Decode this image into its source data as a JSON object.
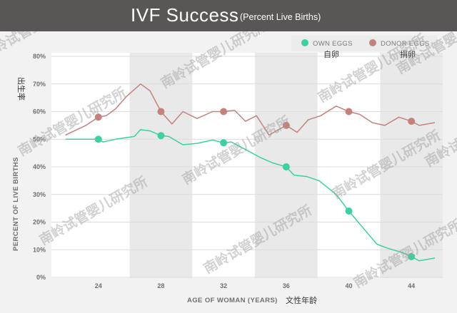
{
  "chart_data": {
    "type": "line",
    "title": "IVF Success",
    "subtitle": "(Percent Live Births)",
    "xlabel": "AGE OF WOMAN (YEARS)",
    "xlabel_annotation": "文性年龄",
    "ylabel": "PERCENT OF LIVE BIRTHS",
    "ylabel_annotation": "出生率",
    "xlim": [
      21,
      46
    ],
    "ylim": [
      0,
      80
    ],
    "x_ticks": [
      24,
      28,
      32,
      36,
      40,
      44
    ],
    "y_ticks": [
      "0%",
      "10%",
      "20%",
      "30%",
      "40%",
      "50%",
      "60%",
      "70%",
      "80%"
    ],
    "y_tick_values": [
      0,
      10,
      20,
      30,
      40,
      50,
      60,
      70,
      80
    ],
    "grid": true,
    "legend": "top-right",
    "series": [
      {
        "name": "OWN EGGS",
        "annotation": "自卵",
        "color": "#3ecfa2",
        "x": [
          21.9,
          23.3,
          24,
          24.3,
          25.1,
          26.3,
          26.7,
          27.3,
          28,
          28.5,
          29.4,
          30.3,
          31.3,
          32,
          32.5,
          33.5,
          34.3,
          35.1,
          36,
          36.5,
          37.3,
          38.1,
          39.2,
          40,
          40.9,
          41.8,
          42.5,
          43.4,
          44,
          44.5,
          45.5
        ],
        "values": [
          50.0,
          50.0,
          50.0,
          49.0,
          50.0,
          51.0,
          53.5,
          53.0,
          51.3,
          51.0,
          48.0,
          48.5,
          49.7,
          48.7,
          49.0,
          46.0,
          43.5,
          41.5,
          40.0,
          37.0,
          36.5,
          35.0,
          30.0,
          24.0,
          18.0,
          12.0,
          10.5,
          9.0,
          7.5,
          6.0,
          7.0
        ]
      },
      {
        "name": "DONOR EGGS",
        "annotation": "捐卵",
        "color": "#c2837e",
        "x": [
          21.9,
          23.2,
          24,
          24.5,
          25.1,
          25.8,
          26.7,
          27.3,
          28,
          28.7,
          29.4,
          30.3,
          31.3,
          32,
          32.7,
          33.4,
          34.1,
          34.9,
          36,
          36.7,
          37.4,
          38.2,
          39.2,
          40,
          40.7,
          41.5,
          42.3,
          43.2,
          44,
          44.5,
          45.5
        ],
        "values": [
          51.5,
          55.0,
          58.0,
          58.5,
          61.0,
          65.5,
          70.0,
          67.5,
          60.0,
          55.5,
          60.0,
          57.5,
          60.0,
          60.0,
          60.5,
          56.5,
          58.5,
          51.5,
          55.0,
          52.5,
          57.0,
          58.5,
          62.0,
          60.0,
          59.0,
          56.0,
          55.0,
          58.0,
          56.5,
          55.0,
          56.0
        ]
      }
    ],
    "markers": [
      {
        "series": 0,
        "x": [
          24,
          28,
          32,
          36,
          40,
          44
        ],
        "values": [
          50.0,
          51.3,
          48.7,
          40.0,
          24.0,
          7.5
        ]
      },
      {
        "series": 1,
        "x": [
          24,
          28,
          32,
          36,
          40,
          44
        ],
        "values": [
          58.0,
          60.0,
          60.0,
          55.0,
          60.0,
          56.5
        ]
      }
    ]
  },
  "watermark": "南岭试管婴儿研究所"
}
